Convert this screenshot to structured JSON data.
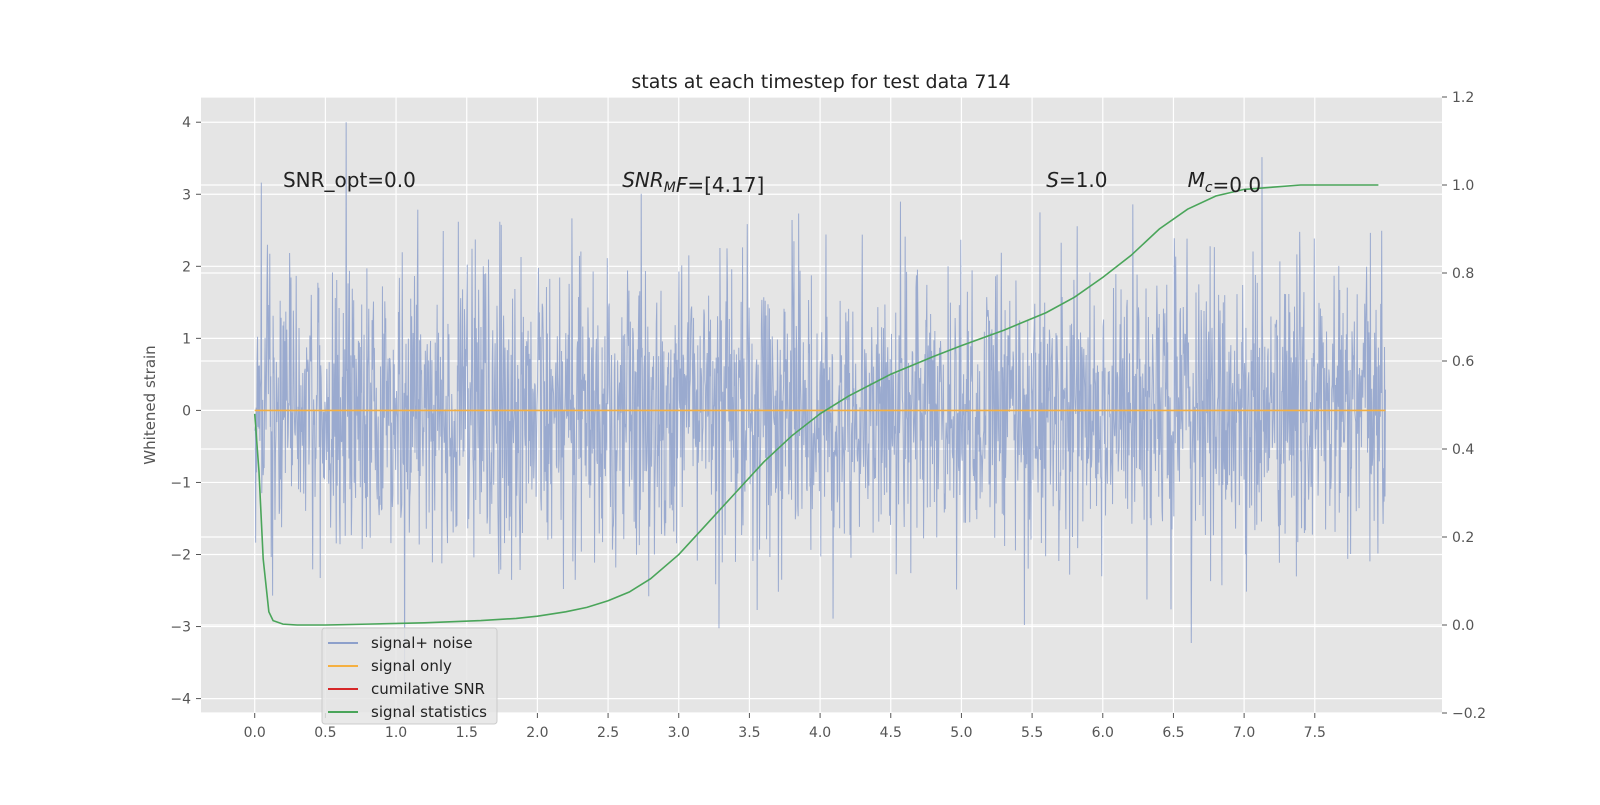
{
  "chart_data": {
    "type": "line",
    "title": "stats at each timestep for test data 714",
    "ylabel": "Whitened strain",
    "xlim": [
      -0.38,
      8.4
    ],
    "ylim": [
      -4.2,
      4.35
    ],
    "y2lim": [
      -0.2,
      1.2
    ],
    "x_ticks": [
      0.0,
      0.5,
      1.0,
      1.5,
      2.0,
      2.5,
      3.0,
      3.5,
      4.0,
      4.5,
      5.0,
      5.5,
      6.0,
      6.5,
      7.0,
      7.5
    ],
    "x_tick_labels": [
      "0.0",
      "0.5",
      "1.0",
      "1.5",
      "2.0",
      "2.5",
      "3.0",
      "3.5",
      "4.0",
      "4.5",
      "5.0",
      "5.5",
      "6.0",
      "6.5",
      "7.0",
      "7.5"
    ],
    "y_ticks": [
      -4,
      -3,
      -2,
      -1,
      0,
      1,
      2,
      3,
      4
    ],
    "y_tick_labels": [
      "−4",
      "−3",
      "−2",
      "−1",
      "0",
      "1",
      "2",
      "3",
      "4"
    ],
    "y2_ticks": [
      -0.2,
      0.0,
      0.2,
      0.4,
      0.6,
      0.8,
      1.0,
      1.2
    ],
    "y2_tick_labels": [
      "−0.2",
      "0.0",
      "0.2",
      "0.4",
      "0.6",
      "0.8",
      "1.0",
      "1.2"
    ],
    "grid": true,
    "legend_position": "lower-left",
    "annotations": [
      {
        "id": "snr-opt",
        "base": "SNR_opt=0.0",
        "sub": "",
        "rest": "",
        "italic": false,
        "x": 0.2,
        "y": 3.2
      },
      {
        "id": "snr-mf",
        "base": "SNR",
        "sub": "M",
        "rest": "F=[4.17]",
        "italic": true,
        "x": 2.6,
        "y": 3.2
      },
      {
        "id": "s-value",
        "base": "S",
        "sub": "",
        "rest": "=1.0",
        "italic": true,
        "x": 5.6,
        "y": 3.2
      },
      {
        "id": "mc-value",
        "base": "M",
        "sub": "c",
        "rest": "=0.0",
        "italic": true,
        "x": 6.6,
        "y": 3.2
      }
    ],
    "series": [
      {
        "name": "signal+ noise",
        "color": "#8da0cb",
        "axis": "left",
        "kind": "noise",
        "x_range": [
          0.0,
          8.0
        ],
        "amplitude_range": [
          -3.8,
          4.0
        ]
      },
      {
        "name": "signal only",
        "color": "#f5b041",
        "axis": "left",
        "x": [
          0.0,
          8.0
        ],
        "y": [
          0.0,
          0.0
        ]
      },
      {
        "name": "cumilative SNR",
        "color": "#d62728",
        "axis": "right",
        "x": [],
        "y": []
      },
      {
        "name": "signal statistics",
        "color": "#4aa55a",
        "axis": "right",
        "x": [
          0.0,
          0.03,
          0.06,
          0.1,
          0.13,
          0.2,
          0.3,
          0.5,
          0.8,
          1.2,
          1.6,
          1.85,
          2.0,
          2.2,
          2.35,
          2.5,
          2.65,
          2.8,
          3.0,
          3.2,
          3.4,
          3.6,
          3.8,
          4.0,
          4.2,
          4.5,
          4.8,
          5.0,
          5.3,
          5.6,
          5.8,
          6.0,
          6.2,
          6.4,
          6.6,
          6.8,
          7.0,
          7.2,
          7.4,
          7.7,
          7.95
        ],
        "y": [
          0.48,
          0.35,
          0.15,
          0.03,
          0.01,
          0.002,
          0.0,
          0.0,
          0.002,
          0.005,
          0.01,
          0.015,
          0.02,
          0.03,
          0.04,
          0.055,
          0.075,
          0.105,
          0.16,
          0.23,
          0.3,
          0.37,
          0.43,
          0.48,
          0.52,
          0.57,
          0.61,
          0.635,
          0.67,
          0.71,
          0.745,
          0.79,
          0.84,
          0.9,
          0.945,
          0.975,
          0.99,
          0.995,
          1.0,
          1.0,
          1.0
        ]
      }
    ]
  }
}
